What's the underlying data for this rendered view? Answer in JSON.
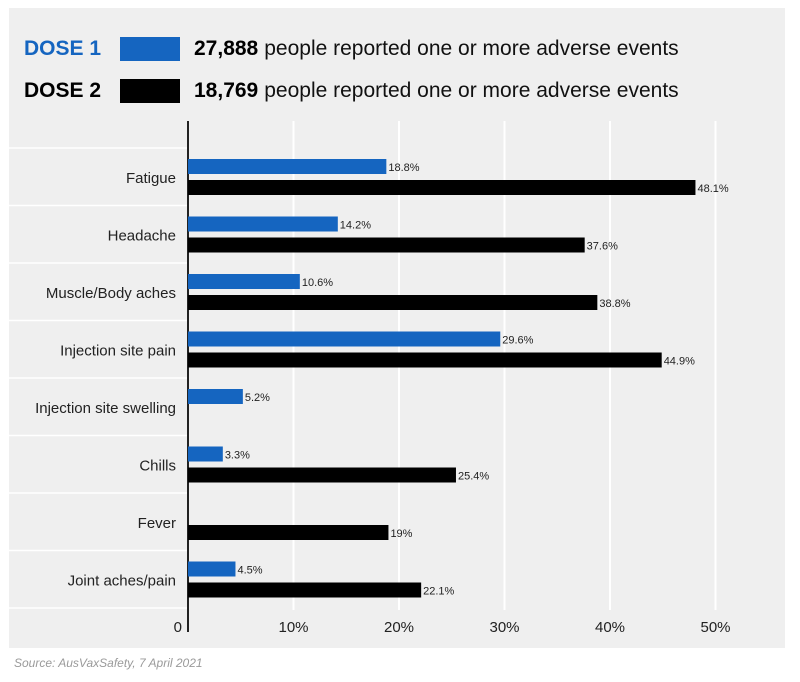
{
  "legend": {
    "dose1": {
      "label": "DOSE 1",
      "count": "27,888",
      "text": "people reported one or more adverse events",
      "color": "#1565c0"
    },
    "dose2": {
      "label": "DOSE 2",
      "count": "18,769",
      "text": "people reported one or more adverse events",
      "color": "#000000"
    }
  },
  "source": "Source: AusVaxSafety, 7 April 2021",
  "chart_data": {
    "type": "bar",
    "orientation": "horizontal",
    "categories": [
      "Fatigue",
      "Headache",
      "Muscle/Body aches",
      "Injection site pain",
      "Injection site swelling",
      "Chills",
      "Fever",
      "Joint aches/pain"
    ],
    "series": [
      {
        "name": "DOSE 1",
        "color": "#1565c0",
        "values": [
          18.8,
          14.2,
          10.6,
          29.6,
          5.2,
          3.3,
          null,
          4.5
        ],
        "labels": [
          "18.8%",
          "14.2%",
          "10.6%",
          "29.6%",
          "5.2%",
          "3.3%",
          "",
          "4.5%"
        ]
      },
      {
        "name": "DOSE 2",
        "color": "#000000",
        "values": [
          48.1,
          37.6,
          38.8,
          44.9,
          null,
          25.4,
          19,
          22.1
        ],
        "labels": [
          "48.1%",
          "37.6%",
          "38.8%",
          "44.9%",
          "",
          "25.4%",
          "19%",
          "22.1%"
        ]
      }
    ],
    "xticks": [
      0,
      10,
      20,
      30,
      40,
      50
    ],
    "xtick_labels": [
      "0",
      "10%",
      "20%",
      "30%",
      "40%",
      "50%"
    ],
    "xlim": [
      0,
      55
    ],
    "grid": true,
    "legend_position": "top"
  }
}
